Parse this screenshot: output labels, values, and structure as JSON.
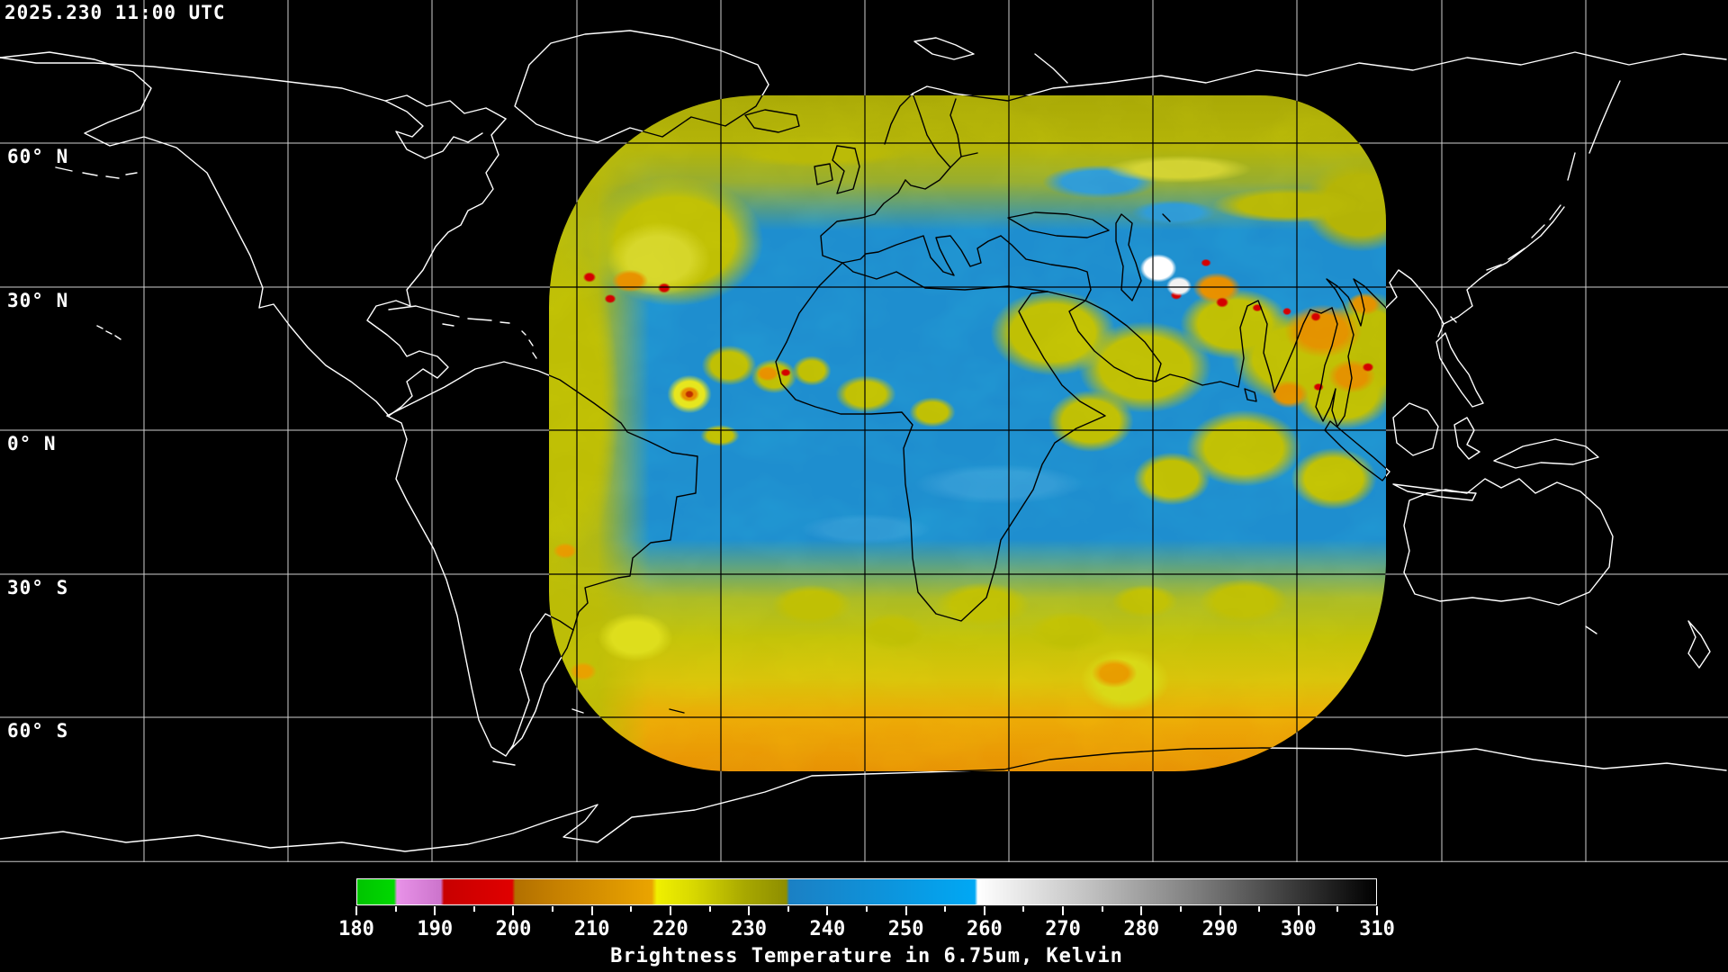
{
  "header": {
    "timestamp": "2025.230 11:00 UTC"
  },
  "map": {
    "lat_labels": [
      "60° N",
      "30° N",
      "0° N",
      "30° S",
      "60° S"
    ],
    "background_color": "#000000",
    "coastline_color_outside_swath": "#ffffff",
    "coastline_color_inside_swath": "#000000",
    "graticule_spacing_deg": 30
  },
  "swath": {
    "description_colors": {
      "moist_blue": "#1e8ecf",
      "cloud_yellow": "#c0c004",
      "cold_orange": "#e89000",
      "coldest_red": "#d40000",
      "overshoot_white": "#ffffff"
    }
  },
  "colorbar": {
    "title": "Brightness Temperature in 6.75um, Kelvin",
    "min": 180,
    "max": 310,
    "major_ticks": [
      180,
      190,
      200,
      210,
      220,
      230,
      240,
      250,
      260,
      270,
      280,
      290,
      300,
      310
    ],
    "minor_ticks": [
      185,
      195,
      205,
      215,
      225,
      235,
      245,
      255,
      265,
      275,
      285,
      295,
      305
    ],
    "segments": [
      {
        "from": 180,
        "to": 185,
        "color_start": "#00c400",
        "color_end": "#00d800",
        "name": "green"
      },
      {
        "from": 185,
        "to": 191,
        "color_start": "#e892e8",
        "color_end": "#cc74cc",
        "name": "violet"
      },
      {
        "from": 191,
        "to": 200,
        "color_start": "#c80000",
        "color_end": "#e00000",
        "name": "red"
      },
      {
        "from": 200,
        "to": 218,
        "color_start": "#b27000",
        "color_end": "#eaa400",
        "name": "orange"
      },
      {
        "from": 218,
        "to": 235,
        "color_start": "#f0f000",
        "color_end": "#8e8e00",
        "name": "yellow-olive"
      },
      {
        "from": 235,
        "to": 259,
        "color_start": "#1b80c4",
        "color_end": "#00a8f4",
        "name": "blue"
      },
      {
        "from": 259,
        "to": 310,
        "color_start": "#ffffff",
        "color_end": "#000000",
        "name": "grayscale"
      }
    ]
  }
}
